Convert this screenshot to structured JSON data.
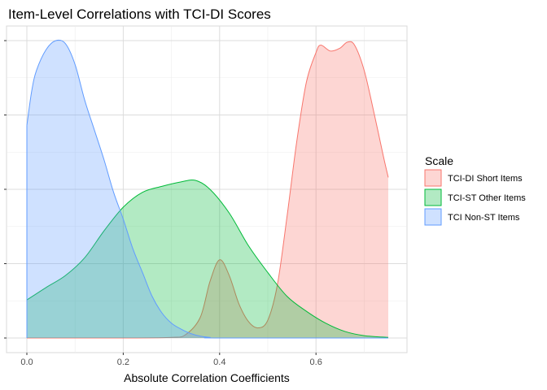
{
  "chart_data": {
    "type": "area",
    "title": "Item-Level Correlations with TCI-DI Scores",
    "xlabel": "Absolute Correlation Coefficients",
    "ylabel": "",
    "xlim": [
      0,
      0.75
    ],
    "ylim": [
      0,
      1
    ],
    "x_ticks": [
      0.0,
      0.2,
      0.4,
      0.6
    ],
    "x_tick_labels": [
      "0.0",
      "0.2",
      "0.4",
      "0.6"
    ],
    "y_tick_labels_shown": false,
    "grid": true,
    "legend": {
      "title": "Scale",
      "placement": "right",
      "entries": [
        "TCI-DI Short Items",
        "TCI-ST Other Items",
        "TCI Non-ST Items"
      ]
    },
    "series": [
      {
        "name": "TCI-DI Short Items",
        "fill": "#F8766D",
        "fill_opacity": 0.3,
        "stroke": "#F8766D",
        "points": [
          [
            0.0,
            0.0
          ],
          [
            0.2,
            0.0
          ],
          [
            0.3,
            0.002
          ],
          [
            0.33,
            0.012
          ],
          [
            0.36,
            0.07
          ],
          [
            0.38,
            0.19
          ],
          [
            0.4,
            0.263
          ],
          [
            0.42,
            0.21
          ],
          [
            0.44,
            0.115
          ],
          [
            0.46,
            0.055
          ],
          [
            0.48,
            0.034
          ],
          [
            0.5,
            0.06
          ],
          [
            0.52,
            0.18
          ],
          [
            0.54,
            0.41
          ],
          [
            0.56,
            0.66
          ],
          [
            0.58,
            0.86
          ],
          [
            0.6,
            0.96
          ],
          [
            0.61,
            0.985
          ],
          [
            0.63,
            0.965
          ],
          [
            0.65,
            0.975
          ],
          [
            0.665,
            0.995
          ],
          [
            0.68,
            0.985
          ],
          [
            0.7,
            0.9
          ],
          [
            0.72,
            0.76
          ],
          [
            0.74,
            0.61
          ],
          [
            0.75,
            0.54
          ]
        ]
      },
      {
        "name": "TCI-ST Other Items",
        "fill": "#00BA38",
        "fill_opacity": 0.3,
        "stroke": "#00BA38",
        "points": [
          [
            0.0,
            0.128
          ],
          [
            0.04,
            0.17
          ],
          [
            0.08,
            0.21
          ],
          [
            0.12,
            0.27
          ],
          [
            0.16,
            0.36
          ],
          [
            0.2,
            0.44
          ],
          [
            0.24,
            0.49
          ],
          [
            0.28,
            0.51
          ],
          [
            0.32,
            0.525
          ],
          [
            0.35,
            0.53
          ],
          [
            0.38,
            0.5
          ],
          [
            0.42,
            0.42
          ],
          [
            0.46,
            0.31
          ],
          [
            0.5,
            0.22
          ],
          [
            0.54,
            0.14
          ],
          [
            0.58,
            0.09
          ],
          [
            0.62,
            0.05
          ],
          [
            0.66,
            0.022
          ],
          [
            0.7,
            0.008
          ],
          [
            0.75,
            0.002
          ]
        ]
      },
      {
        "name": "TCI Non-ST Items",
        "fill": "#619CFF",
        "fill_opacity": 0.3,
        "stroke": "#619CFF",
        "points": [
          [
            0.0,
            0.715
          ],
          [
            0.01,
            0.83
          ],
          [
            0.02,
            0.9
          ],
          [
            0.04,
            0.97
          ],
          [
            0.06,
            1.0
          ],
          [
            0.08,
            0.99
          ],
          [
            0.1,
            0.92
          ],
          [
            0.12,
            0.8
          ],
          [
            0.14,
            0.7
          ],
          [
            0.16,
            0.6
          ],
          [
            0.18,
            0.49
          ],
          [
            0.2,
            0.4
          ],
          [
            0.22,
            0.3
          ],
          [
            0.24,
            0.22
          ],
          [
            0.26,
            0.14
          ],
          [
            0.28,
            0.085
          ],
          [
            0.3,
            0.05
          ],
          [
            0.32,
            0.03
          ],
          [
            0.34,
            0.015
          ],
          [
            0.36,
            0.006
          ],
          [
            0.38,
            0.002
          ],
          [
            0.4,
            0.0
          ],
          [
            0.75,
            0.0
          ]
        ]
      }
    ]
  }
}
